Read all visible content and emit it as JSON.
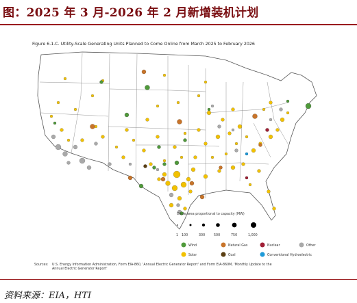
{
  "header": {
    "title": "图：2025 年 3 月-2026 年 2 月新增装机计划"
  },
  "figure": {
    "title": "Figure 6.1.C. Utility-Scale Generating Units Planned to Come Online from March 2025 to February 2026"
  },
  "legend": {
    "size_title": "Circle area proportional to capacity (MW)",
    "size_ticks": [
      "1",
      "100",
      "300",
      "500",
      "750",
      "1,000"
    ],
    "categories": [
      {
        "label": "Wind",
        "color": "#4f9a3a"
      },
      {
        "label": "Natural Gas",
        "color": "#c8742a"
      },
      {
        "label": "Nuclear",
        "color": "#a01f35"
      },
      {
        "label": "Other",
        "color": "#a9a9a9"
      },
      {
        "label": "Solar",
        "color": "#f2c100"
      },
      {
        "label": "Coal",
        "color": "#5a3e12"
      },
      {
        "label": "Conventional Hydroelectric",
        "color": "#1e9ad8"
      }
    ]
  },
  "sources": {
    "key": "Sources:",
    "text": "U.S. Energy Information Administration, Form EIA-860, 'Annual Electric Generator Report' and Form EIA-860M, 'Monthly Update to the Annual Electric Generator Report'"
  },
  "footer": {
    "source_line": "资料来源：EIA，HTI"
  }
}
